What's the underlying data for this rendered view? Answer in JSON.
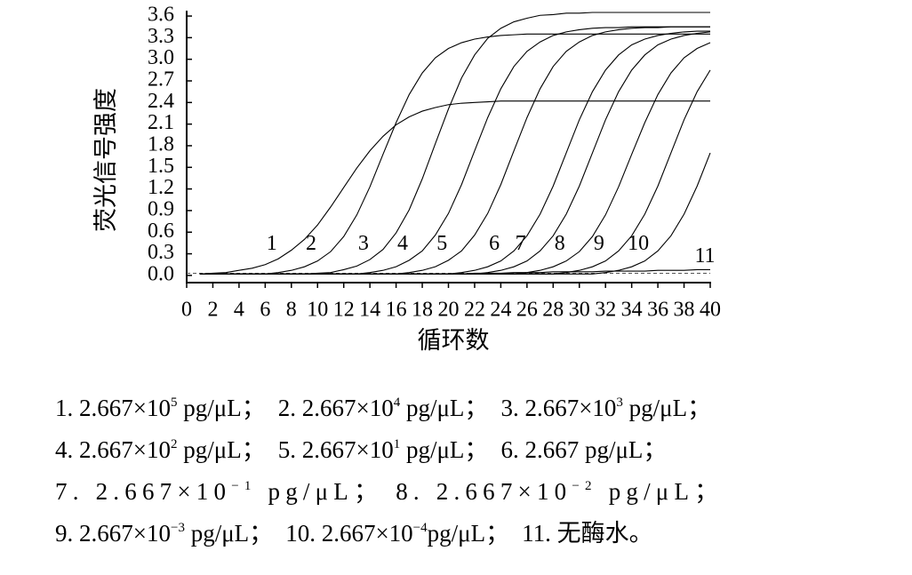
{
  "chart_data": {
    "type": "line",
    "y_label": "荧光信号强度",
    "x_label": "循环数",
    "x": [
      1,
      2,
      3,
      4,
      5,
      6,
      7,
      8,
      9,
      10,
      11,
      12,
      13,
      14,
      15,
      16,
      17,
      18,
      19,
      20,
      21,
      22,
      23,
      24,
      25,
      26,
      27,
      28,
      29,
      30,
      31,
      32,
      33,
      34,
      35,
      36,
      37,
      38,
      39,
      40
    ],
    "xlim": [
      0,
      40
    ],
    "xticks": [
      0,
      2,
      4,
      6,
      8,
      10,
      12,
      14,
      16,
      18,
      20,
      22,
      24,
      26,
      28,
      30,
      32,
      34,
      36,
      38,
      40
    ],
    "ylim": [
      -0.1,
      3.65
    ],
    "yticks": [
      {
        "value": 0,
        "label": "0.0"
      },
      0.3,
      0.6,
      0.9,
      1.2,
      1.5,
      1.8,
      2.1,
      2.4,
      2.7,
      {
        "value": 3,
        "label": "3.0"
      },
      3.3,
      3.6
    ],
    "threshold": 0.03,
    "series": [
      {
        "name": "1",
        "color": "#000000",
        "values": [
          0.02,
          0.03,
          0.04,
          0.07,
          0.1,
          0.15,
          0.23,
          0.35,
          0.5,
          0.7,
          0.95,
          1.22,
          1.49,
          1.73,
          1.93,
          2.09,
          2.2,
          2.28,
          2.33,
          2.37,
          2.39,
          2.4,
          2.41,
          2.42,
          2.42,
          2.42,
          2.42,
          2.42,
          2.42,
          2.42,
          2.42,
          2.42,
          2.42,
          2.42,
          2.42,
          2.42,
          2.42,
          2.42,
          2.42,
          2.42
        ]
      },
      {
        "name": "2",
        "color": "#000000",
        "values": [
          0.02,
          0.02,
          0.02,
          0.02,
          0.02,
          0.02,
          0.04,
          0.07,
          0.12,
          0.2,
          0.33,
          0.54,
          0.84,
          1.23,
          1.68,
          2.12,
          2.51,
          2.81,
          3.02,
          3.15,
          3.23,
          3.28,
          3.31,
          3.33,
          3.34,
          3.35,
          3.35,
          3.35,
          3.35,
          3.35,
          3.35,
          3.35,
          3.35,
          3.35,
          3.35,
          3.35,
          3.35,
          3.35,
          3.35,
          3.35
        ]
      },
      {
        "name": "3",
        "color": "#000000",
        "values": [
          0.02,
          0.02,
          0.02,
          0.02,
          0.02,
          0.02,
          0.02,
          0.02,
          0.02,
          0.03,
          0.04,
          0.08,
          0.13,
          0.22,
          0.36,
          0.59,
          0.91,
          1.34,
          1.83,
          2.31,
          2.74,
          3.06,
          3.29,
          3.43,
          3.52,
          3.57,
          3.61,
          3.62,
          3.64,
          3.64,
          3.65,
          3.65,
          3.65,
          3.65,
          3.65,
          3.65,
          3.65,
          3.65,
          3.65,
          3.65
        ]
      },
      {
        "name": "4",
        "color": "#000000",
        "values": [
          0.02,
          0.02,
          0.02,
          0.02,
          0.02,
          0.02,
          0.02,
          0.02,
          0.02,
          0.02,
          0.02,
          0.02,
          0.02,
          0.04,
          0.07,
          0.12,
          0.21,
          0.34,
          0.56,
          0.86,
          1.26,
          1.73,
          2.19,
          2.59,
          2.9,
          3.11,
          3.24,
          3.33,
          3.38,
          3.41,
          3.43,
          3.44,
          3.44,
          3.45,
          3.45,
          3.45,
          3.45,
          3.45,
          3.45,
          3.45
        ]
      },
      {
        "name": "5",
        "color": "#000000",
        "values": [
          0.02,
          0.02,
          0.02,
          0.02,
          0.02,
          0.02,
          0.02,
          0.02,
          0.02,
          0.02,
          0.02,
          0.02,
          0.02,
          0.02,
          0.02,
          0.02,
          0.04,
          0.07,
          0.12,
          0.21,
          0.34,
          0.56,
          0.86,
          1.26,
          1.73,
          2.19,
          2.59,
          2.9,
          3.11,
          3.24,
          3.33,
          3.38,
          3.41,
          3.43,
          3.44,
          3.44,
          3.45,
          3.45,
          3.45,
          3.45
        ]
      },
      {
        "name": "6",
        "color": "#000000",
        "values": [
          0.02,
          0.02,
          0.02,
          0.02,
          0.02,
          0.02,
          0.02,
          0.02,
          0.02,
          0.02,
          0.02,
          0.02,
          0.02,
          0.02,
          0.02,
          0.02,
          0.02,
          0.02,
          0.02,
          0.02,
          0.04,
          0.07,
          0.12,
          0.2,
          0.34,
          0.55,
          0.85,
          1.24,
          1.7,
          2.16,
          2.55,
          2.85,
          3.06,
          3.2,
          3.28,
          3.33,
          3.36,
          3.38,
          3.39,
          3.39
        ]
      },
      {
        "name": "7",
        "color": "#000000",
        "values": [
          0.02,
          0.02,
          0.02,
          0.02,
          0.02,
          0.02,
          0.02,
          0.02,
          0.02,
          0.02,
          0.02,
          0.02,
          0.02,
          0.02,
          0.02,
          0.02,
          0.02,
          0.02,
          0.02,
          0.02,
          0.02,
          0.02,
          0.04,
          0.07,
          0.12,
          0.2,
          0.34,
          0.55,
          0.85,
          1.24,
          1.7,
          2.16,
          2.55,
          2.85,
          3.06,
          3.2,
          3.28,
          3.33,
          3.36,
          3.38
        ]
      },
      {
        "name": "8",
        "color": "#000000",
        "values": [
          0.02,
          0.02,
          0.02,
          0.02,
          0.02,
          0.02,
          0.02,
          0.02,
          0.02,
          0.02,
          0.02,
          0.02,
          0.02,
          0.02,
          0.02,
          0.02,
          0.02,
          0.02,
          0.02,
          0.02,
          0.02,
          0.02,
          0.02,
          0.02,
          0.02,
          0.04,
          0.07,
          0.12,
          0.2,
          0.33,
          0.54,
          0.84,
          1.23,
          1.68,
          2.12,
          2.51,
          2.81,
          3.02,
          3.15,
          3.23
        ]
      },
      {
        "name": "9",
        "color": "#000000",
        "values": [
          0.02,
          0.02,
          0.02,
          0.02,
          0.02,
          0.02,
          0.02,
          0.02,
          0.02,
          0.02,
          0.02,
          0.02,
          0.02,
          0.02,
          0.02,
          0.02,
          0.02,
          0.02,
          0.02,
          0.02,
          0.02,
          0.02,
          0.02,
          0.02,
          0.02,
          0.02,
          0.02,
          0.02,
          0.04,
          0.07,
          0.12,
          0.2,
          0.34,
          0.55,
          0.85,
          1.24,
          1.7,
          2.16,
          2.55,
          2.85
        ]
      },
      {
        "name": "10",
        "color": "#000000",
        "values": [
          0.02,
          0.02,
          0.02,
          0.02,
          0.02,
          0.02,
          0.02,
          0.02,
          0.02,
          0.02,
          0.02,
          0.02,
          0.02,
          0.02,
          0.02,
          0.02,
          0.02,
          0.02,
          0.02,
          0.02,
          0.02,
          0.02,
          0.02,
          0.02,
          0.02,
          0.02,
          0.02,
          0.02,
          0.02,
          0.02,
          0.02,
          0.04,
          0.07,
          0.12,
          0.2,
          0.34,
          0.55,
          0.85,
          1.24,
          1.7
        ]
      },
      {
        "name": "11",
        "color": "#000000",
        "values": [
          0.02,
          0.02,
          0.02,
          0.02,
          0.02,
          0.02,
          0.02,
          0.02,
          0.02,
          0.02,
          0.02,
          0.02,
          0.02,
          0.02,
          0.02,
          0.02,
          0.02,
          0.02,
          0.02,
          0.02,
          0.02,
          0.03,
          0.03,
          0.03,
          0.04,
          0.04,
          0.04,
          0.05,
          0.05,
          0.05,
          0.05,
          0.06,
          0.06,
          0.06,
          0.06,
          0.07,
          0.07,
          0.07,
          0.08,
          0.08
        ]
      }
    ]
  },
  "notes": [
    [
      {
        "text": "1. 2.667×10",
        "sup": "5",
        "tail": " pg/μL；"
      },
      {
        "text": "2. 2.667×10",
        "sup": "4",
        "tail": " pg/μL；"
      },
      {
        "text": "3. 2.667×10",
        "sup": "3",
        "tail": " pg/μL；"
      }
    ],
    [
      {
        "text": "4. 2.667×10",
        "sup": "2",
        "tail": " pg/μL；"
      },
      {
        "text": "5. 2.667×10",
        "sup": "1",
        "tail": " pg/μL；"
      },
      {
        "text": "6. 2.667 pg/μL；"
      }
    ],
    [
      {
        "text": "7. 2.667×10",
        "sup": "−1",
        "tail": " pg/μL；"
      },
      {
        "text": "8. 2.667×10",
        "sup": "−2",
        "tail": " pg/μL；"
      }
    ],
    [
      {
        "text": "9. 2.667×10",
        "sup": "−3",
        "tail": " pg/μL；"
      },
      {
        "text": "10. 2.667×10",
        "sup": "−4",
        "tail": "pg/μL；"
      },
      {
        "text": "11. 无酶水。"
      }
    ]
  ]
}
